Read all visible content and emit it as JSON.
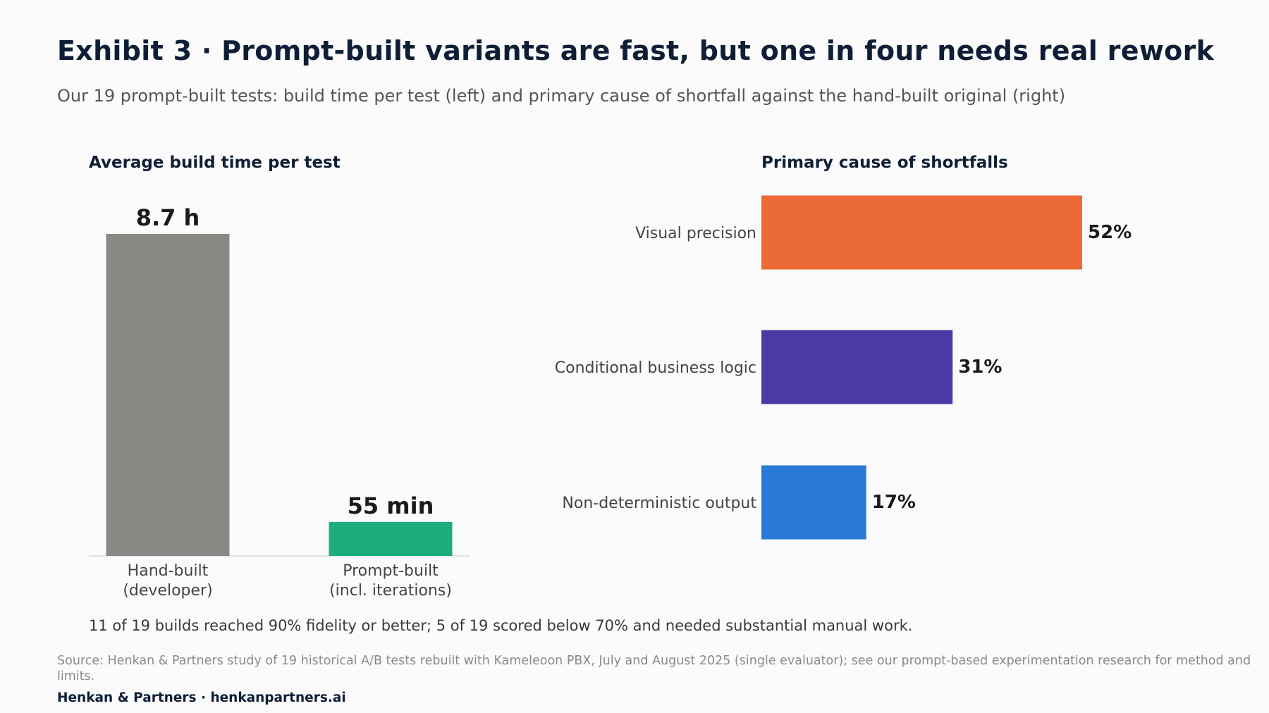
{
  "title": "Exhibit 3 · Prompt-built variants are fast, but one in four needs real rework",
  "subtitle": "Our 19 prompt-built tests: build time per test (left) and primary cause of shortfall against the hand-built original (right)",
  "note": "11 of 19 builds reached 90% fidelity or better; 5 of 19 scored below 70% and needed substantial manual work.",
  "source": "Source: Henkan & Partners study of 19 historical A/B tests rebuilt with Kameleoon PBX, July and August 2025 (single evaluator); see our prompt-based experimentation research for method and limits.",
  "footer": "Henkan & Partners · henkanpartners.ai",
  "chart_data": [
    {
      "type": "bar",
      "title": "Average build time per test",
      "orientation": "vertical",
      "categories": [
        "Hand-built\n(developer)",
        "Prompt-built\n(incl. iterations)"
      ],
      "values": [
        8.7,
        0.9167
      ],
      "unit": "hours",
      "data_labels": [
        "8.7 h",
        "55 min"
      ],
      "colors": [
        "#898884",
        "#1cae7a"
      ],
      "ylim": [
        0,
        9.5
      ],
      "grid": false
    },
    {
      "type": "bar",
      "title": "Primary cause of shortfalls",
      "orientation": "horizontal",
      "categories": [
        "Visual precision",
        "Conditional business logic",
        "Non-deterministic output"
      ],
      "values": [
        52,
        31,
        17
      ],
      "unit": "%",
      "data_labels": [
        "52%",
        "31%",
        "17%"
      ],
      "colors": [
        "#eb6a35",
        "#4b3aa6",
        "#2a79d6"
      ],
      "xlim": [
        0,
        100
      ],
      "grid": false
    }
  ]
}
